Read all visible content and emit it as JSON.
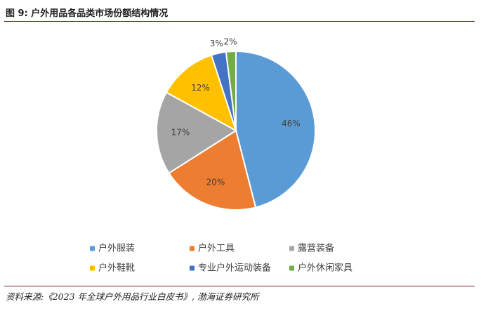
{
  "figure": {
    "title": "图 9:  户外用品各品类市场份额结构情况",
    "source": "资料来源:《2023 年全球户外用品行业白皮书》, 渤海证券研究所"
  },
  "chart_data": {
    "type": "pie",
    "title": "",
    "legend_position": "bottom",
    "slices": [
      {
        "label": "户外服装",
        "value": 46,
        "display": "46%",
        "color": "#5b9bd5"
      },
      {
        "label": "户外工具",
        "value": 20,
        "display": "20%",
        "color": "#ed7d31"
      },
      {
        "label": "露营装备",
        "value": 17,
        "display": "17%",
        "color": "#a5a5a5"
      },
      {
        "label": "户外鞋靴",
        "value": 12,
        "display": "12%",
        "color": "#ffc000"
      },
      {
        "label": "专业户外运动装备",
        "value": 3,
        "display": "3%",
        "color": "#4472c4"
      },
      {
        "label": "户外休闲家具",
        "value": 2,
        "display": "2%",
        "color": "#70ad47"
      }
    ]
  }
}
